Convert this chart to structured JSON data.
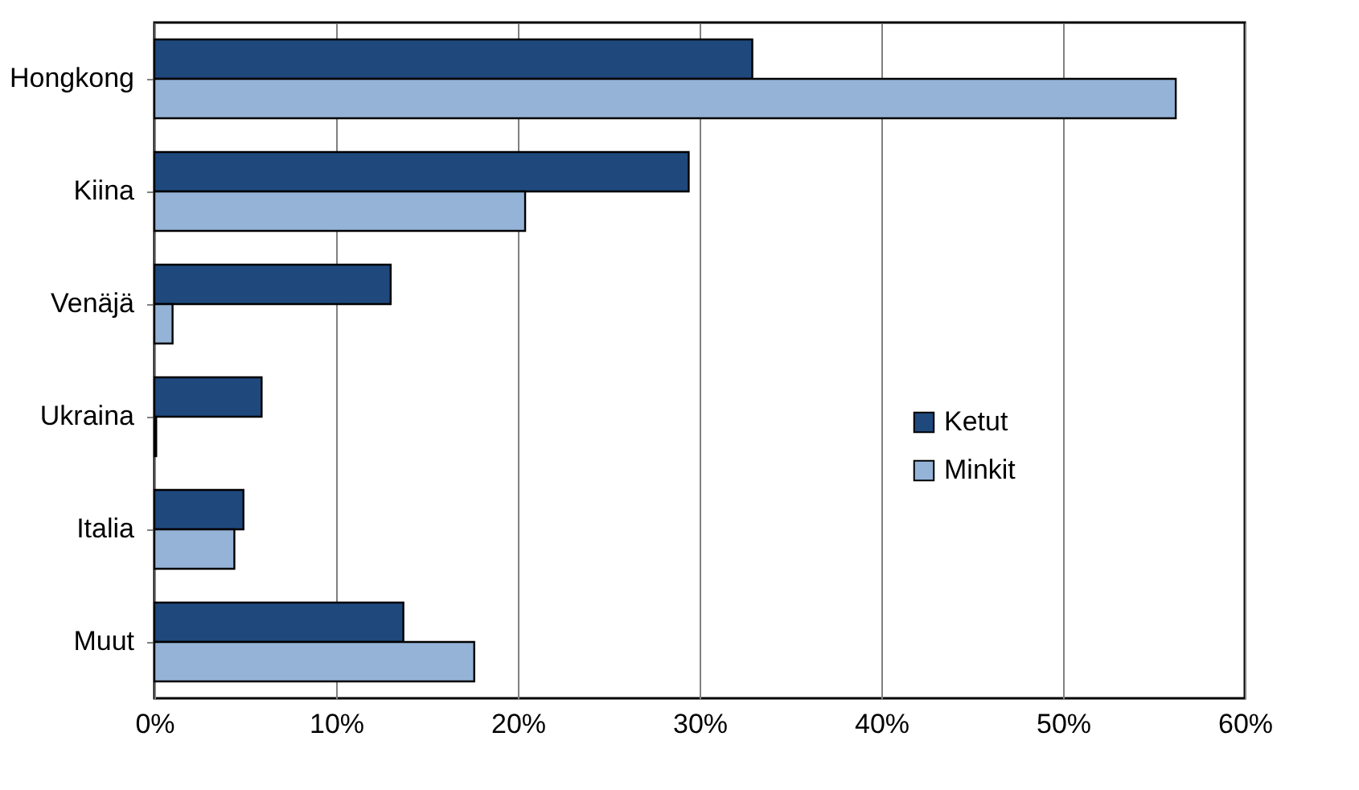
{
  "chart_data": {
    "type": "bar",
    "orientation": "horizontal",
    "categories": [
      "Hongkong",
      "Kiina",
      "Venäjä",
      "Ukraina",
      "Italia",
      "Muut"
    ],
    "series": [
      {
        "name": "Ketut",
        "color": "#1f497d",
        "values": [
          32.9,
          29.4,
          13.0,
          5.9,
          4.9,
          13.7
        ]
      },
      {
        "name": "Minkit",
        "color": "#95b3d7",
        "values": [
          56.2,
          20.4,
          1.0,
          0.1,
          4.4,
          17.6
        ]
      }
    ],
    "xlim": [
      0,
      60
    ],
    "xticks": [
      {
        "value": 0,
        "label": "0%"
      },
      {
        "value": 10,
        "label": "10%"
      },
      {
        "value": 20,
        "label": "20%"
      },
      {
        "value": 30,
        "label": "30%"
      },
      {
        "value": 40,
        "label": "40%"
      },
      {
        "value": 50,
        "label": "50%"
      },
      {
        "value": 60,
        "label": "60%"
      }
    ],
    "grid": "x",
    "legend": "right"
  }
}
